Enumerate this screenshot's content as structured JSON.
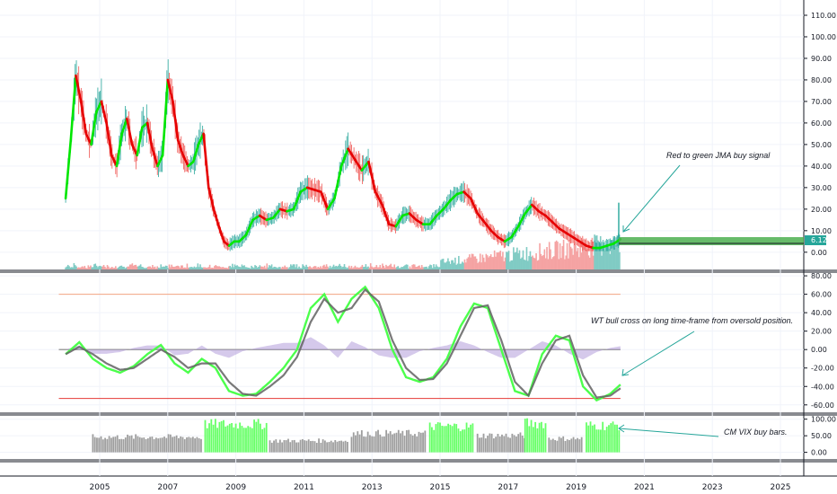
{
  "chart_data": [
    {
      "type": "line",
      "panel": "price",
      "title": "",
      "colors": {
        "up": "#26a69a",
        "down": "#ef5350",
        "jma_up": "#00e600",
        "jma_down": "#e60000",
        "vol_up": "#80cbc4",
        "vol_down": "#f5a3a3"
      },
      "x_ticks": [
        "2005",
        "2007",
        "2009",
        "2011",
        "2013",
        "2015",
        "2017",
        "2019",
        "2021",
        "2023",
        "2025"
      ],
      "ylim": [
        -8,
        115
      ],
      "y_ticks": [
        "110.00",
        "100.00",
        "90.00",
        "80.00",
        "70.00",
        "60.00",
        "50.00",
        "40.00",
        "30.00",
        "20.00",
        "10.00",
        "0.00"
      ],
      "series": [
        {
          "x": [
            2004.0,
            2004.15,
            2004.3,
            2004.45,
            2004.6,
            2004.75,
            2004.9,
            2005.05,
            2005.2,
            2005.35,
            2005.5,
            2005.65,
            2005.8,
            2005.95,
            2006.1,
            2006.25,
            2006.4,
            2006.55,
            2006.7,
            2006.85,
            2007.0,
            2007.15,
            2007.3,
            2007.45,
            2007.6,
            2007.75,
            2007.9,
            2008.05,
            2008.2,
            2008.35,
            2008.5,
            2008.65,
            2008.8,
            2008.95,
            2009.1,
            2009.3,
            2009.5,
            2009.7,
            2009.9,
            2010.1,
            2010.3,
            2010.5,
            2010.7,
            2010.9,
            2011.1,
            2011.3,
            2011.5,
            2011.7,
            2011.9,
            2012.1,
            2012.3,
            2012.5,
            2012.7,
            2012.9,
            2013.1,
            2013.3,
            2013.5,
            2013.7,
            2013.9,
            2014.1,
            2014.3,
            2014.5,
            2014.7,
            2014.9,
            2015.1,
            2015.3,
            2015.5,
            2015.7,
            2015.9,
            2016.1,
            2016.3,
            2016.5,
            2016.7,
            2016.9,
            2017.1,
            2017.3,
            2017.5,
            2017.7,
            2017.9,
            2018.1,
            2018.3,
            2018.5,
            2018.7,
            2018.9,
            2019.1,
            2019.3,
            2019.5,
            2019.7,
            2019.9,
            2020.1,
            2020.3
          ],
          "y": [
            25,
            52,
            82,
            70,
            55,
            50,
            65,
            70,
            60,
            45,
            40,
            55,
            62,
            50,
            45,
            58,
            60,
            48,
            40,
            45,
            80,
            70,
            52,
            45,
            40,
            42,
            50,
            55,
            30,
            20,
            12,
            5,
            3,
            5,
            5,
            8,
            15,
            17,
            15,
            16,
            20,
            19,
            20,
            28,
            30,
            29,
            28,
            20,
            25,
            40,
            48,
            43,
            38,
            42,
            28,
            22,
            13,
            12,
            17,
            18,
            15,
            13,
            13,
            17,
            20,
            24,
            27,
            28,
            25,
            18,
            14,
            10,
            7,
            5,
            7,
            12,
            18,
            22,
            19,
            17,
            14,
            11,
            9,
            7,
            5,
            3,
            2,
            2,
            3,
            4,
            6
          ],
          "jma_colors": "green while rising, red while falling"
        }
      ],
      "last_price": "6.12",
      "annotations": [
        "Red to green JMA buy signal"
      ]
    },
    {
      "type": "line",
      "panel": "oscillator",
      "ylim": [
        -68,
        83
      ],
      "y_ticks": [
        "80.00",
        "60.00",
        "40.00",
        "20.00",
        "0.00",
        "-20.00",
        "-40.00",
        "-60.00"
      ],
      "levels": {
        "overbought": 60,
        "oversold": -53,
        "zero": 0
      },
      "series": [
        {
          "x": [
            2004.0,
            2004.4,
            2004.8,
            2005.2,
            2005.6,
            2006.0,
            2006.4,
            2006.8,
            2007.2,
            2007.6,
            2008.0,
            2008.4,
            2008.8,
            2009.2,
            2009.6,
            2010.0,
            2010.4,
            2010.8,
            2011.2,
            2011.6,
            2012.0,
            2012.4,
            2012.8,
            2013.2,
            2013.6,
            2014.0,
            2014.4,
            2014.8,
            2015.2,
            2015.6,
            2016.0,
            2016.4,
            2016.8,
            2017.2,
            2017.6,
            2018.0,
            2018.4,
            2018.8,
            2019.2,
            2019.6,
            2020.0,
            2020.3
          ],
          "y": [
            -5,
            8,
            -10,
            -20,
            -25,
            -18,
            -5,
            5,
            -15,
            -25,
            -10,
            -20,
            -45,
            -50,
            -48,
            -35,
            -20,
            0,
            45,
            60,
            30,
            55,
            68,
            45,
            0,
            -30,
            -35,
            -30,
            -10,
            25,
            50,
            45,
            0,
            -45,
            -50,
            -5,
            15,
            10,
            -40,
            -55,
            -48,
            -38
          ]
        },
        {
          "x": [
            2004.0,
            2004.4,
            2004.8,
            2005.2,
            2005.6,
            2006.0,
            2006.4,
            2006.8,
            2007.2,
            2007.6,
            2008.0,
            2008.4,
            2008.8,
            2009.2,
            2009.6,
            2010.0,
            2010.4,
            2010.8,
            2011.2,
            2011.6,
            2012.0,
            2012.4,
            2012.8,
            2013.2,
            2013.6,
            2014.0,
            2014.4,
            2014.8,
            2015.2,
            2015.6,
            2016.0,
            2016.4,
            2016.8,
            2017.2,
            2017.6,
            2018.0,
            2018.4,
            2018.8,
            2019.2,
            2019.6,
            2020.0,
            2020.3
          ],
          "y": [
            -5,
            3,
            -5,
            -15,
            -22,
            -20,
            -10,
            0,
            -8,
            -20,
            -15,
            -15,
            -35,
            -48,
            -50,
            -40,
            -28,
            -8,
            30,
            55,
            40,
            45,
            65,
            52,
            10,
            -20,
            -33,
            -32,
            -15,
            15,
            45,
            48,
            10,
            -35,
            -50,
            -15,
            10,
            15,
            -28,
            -52,
            -50,
            -42
          ]
        }
      ],
      "annotations": [
        "WT bull cross on long time-frame from oversold position."
      ]
    },
    {
      "type": "bar",
      "panel": "vix",
      "ylim": [
        -20,
        110
      ],
      "y_ticks": [
        "100.00",
        "50.00",
        "0.00"
      ],
      "colors": {
        "normal": "#9e9e9e",
        "buy": "#66ff66"
      },
      "bars": [
        {
          "from": 2004.8,
          "to": 2008.0,
          "value": 50,
          "buy": false
        },
        {
          "from": 2008.1,
          "to": 2009.9,
          "value": 92,
          "buy": true
        },
        {
          "from": 2010.0,
          "to": 2012.3,
          "value": 38,
          "buy": false
        },
        {
          "from": 2012.4,
          "to": 2014.6,
          "value": 62,
          "buy": false
        },
        {
          "from": 2014.7,
          "to": 2016.0,
          "value": 85,
          "buy": true
        },
        {
          "from": 2016.1,
          "to": 2017.5,
          "value": 55,
          "buy": false
        },
        {
          "from": 2017.5,
          "to": 2018.1,
          "value": 95,
          "buy": true
        },
        {
          "from": 2018.2,
          "to": 2019.2,
          "value": 45,
          "buy": false
        },
        {
          "from": 2019.3,
          "to": 2020.3,
          "value": 88,
          "buy": true
        }
      ],
      "annotations": [
        "CM VIX buy bars."
      ]
    }
  ]
}
